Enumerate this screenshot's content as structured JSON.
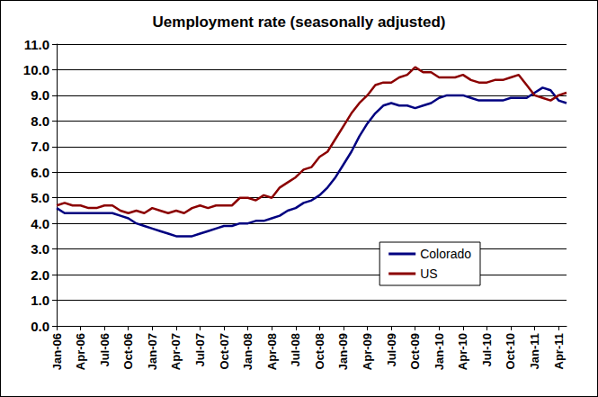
{
  "chart_data": {
    "type": "line",
    "title": "Uemployment rate (seasonally adjusted)",
    "categories": [
      "Jan-06",
      null,
      null,
      "Apr-06",
      null,
      null,
      "Jul-06",
      null,
      null,
      "Oct-06",
      null,
      null,
      "Jan-07",
      null,
      null,
      "Apr-07",
      null,
      null,
      "Jul-07",
      null,
      null,
      "Oct-07",
      null,
      null,
      "Jan-08",
      null,
      null,
      "Apr-08",
      null,
      null,
      "Jul-08",
      null,
      null,
      "Oct-08",
      null,
      null,
      "Jan-09",
      null,
      null,
      "Apr-09",
      null,
      null,
      "Jul-09",
      null,
      null,
      "Oct-09",
      null,
      null,
      "Jan-10",
      null,
      null,
      "Apr-10",
      null,
      null,
      "Jul-10",
      null,
      null,
      "Oct-10",
      null,
      null,
      "Jan-11",
      null,
      null,
      "Apr-11",
      null
    ],
    "series": [
      {
        "name": "Colorado",
        "color": "#000080",
        "values": [
          4.6,
          4.4,
          4.4,
          4.4,
          4.4,
          4.4,
          4.4,
          4.4,
          4.3,
          4.2,
          4.0,
          3.9,
          3.8,
          3.7,
          3.6,
          3.5,
          3.5,
          3.5,
          3.6,
          3.7,
          3.8,
          3.9,
          3.9,
          4.0,
          4.0,
          4.1,
          4.1,
          4.2,
          4.3,
          4.5,
          4.6,
          4.8,
          4.9,
          5.1,
          5.4,
          5.8,
          6.3,
          6.8,
          7.4,
          7.9,
          8.3,
          8.6,
          8.7,
          8.6,
          8.6,
          8.5,
          8.6,
          8.7,
          8.9,
          9.0,
          9.0,
          9.0,
          8.9,
          8.8,
          8.8,
          8.8,
          8.8,
          8.9,
          8.9,
          8.9,
          9.1,
          9.3,
          9.2,
          8.8,
          8.7
        ]
      },
      {
        "name": "US",
        "color": "#8B0000",
        "values": [
          4.7,
          4.8,
          4.7,
          4.7,
          4.6,
          4.6,
          4.7,
          4.7,
          4.5,
          4.4,
          4.5,
          4.4,
          4.6,
          4.5,
          4.4,
          4.5,
          4.4,
          4.6,
          4.7,
          4.6,
          4.7,
          4.7,
          4.7,
          5.0,
          5.0,
          4.9,
          5.1,
          5.0,
          5.4,
          5.6,
          5.8,
          6.1,
          6.2,
          6.6,
          6.8,
          7.3,
          7.8,
          8.3,
          8.7,
          9.0,
          9.4,
          9.5,
          9.5,
          9.7,
          9.8,
          10.1,
          9.9,
          9.9,
          9.7,
          9.7,
          9.7,
          9.8,
          9.6,
          9.5,
          9.5,
          9.6,
          9.6,
          9.7,
          9.8,
          9.4,
          9.0,
          8.9,
          8.8,
          9.0,
          9.1
        ]
      }
    ],
    "ylim": [
      0,
      11
    ],
    "yticks": [
      {
        "value": 0,
        "label": "0.0"
      },
      {
        "value": 1,
        "label": "1.0"
      },
      {
        "value": 2,
        "label": "2.0"
      },
      {
        "value": 3,
        "label": "3.0"
      },
      {
        "value": 4,
        "label": "4.0"
      },
      {
        "value": 5,
        "label": "5.0"
      },
      {
        "value": 6,
        "label": "6.0"
      },
      {
        "value": 7,
        "label": "7.0"
      },
      {
        "value": 8,
        "label": "8.0"
      },
      {
        "value": 9,
        "label": "9.0"
      },
      {
        "value": 10,
        "label": "10.0"
      },
      {
        "value": 11,
        "label": "11.0"
      }
    ],
    "grid": true,
    "legend": "right"
  }
}
